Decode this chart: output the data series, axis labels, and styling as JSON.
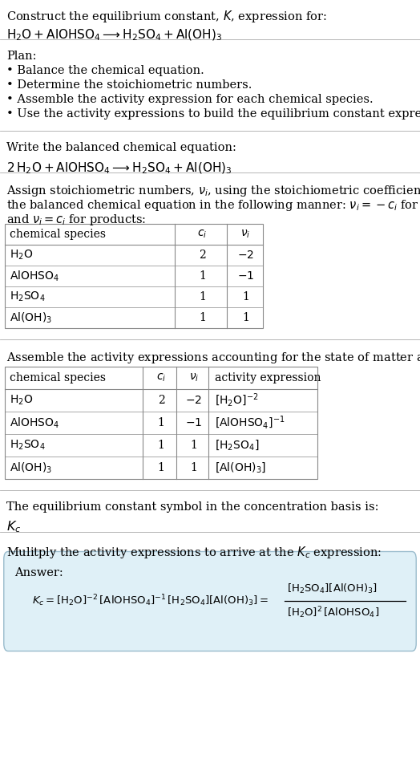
{
  "title_line1": "Construct the equilibrium constant, $K$, expression for:",
  "title_line2": "$\\mathrm{H_2O + AlOHSO_4 \\longrightarrow H_2SO_4 + Al(OH)_3}$",
  "plan_header": "Plan:",
  "plan_items": [
    "• Balance the chemical equation.",
    "• Determine the stoichiometric numbers.",
    "• Assemble the activity expression for each chemical species.",
    "• Use the activity expressions to build the equilibrium constant expression."
  ],
  "balanced_header": "Write the balanced chemical equation:",
  "balanced_eq": "$\\mathrm{2\\,H_2O + AlOHSO_4 \\longrightarrow H_2SO_4 + Al(OH)_3}$",
  "stoich_header1": "Assign stoichiometric numbers, $\\nu_i$, using the stoichiometric coefficients, $c_i$, from",
  "stoich_header2": "the balanced chemical equation in the following manner: $\\nu_i = -c_i$ for reactants",
  "stoich_header3": "and $\\nu_i = c_i$ for products:",
  "table1_cols": [
    "chemical species",
    "$c_i$",
    "$\\nu_i$"
  ],
  "table1_rows": [
    [
      "$\\mathrm{H_2O}$",
      "2",
      "$-2$"
    ],
    [
      "$\\mathrm{AlOHSO_4}$",
      "1",
      "$-1$"
    ],
    [
      "$\\mathrm{H_2SO_4}$",
      "1",
      "1"
    ],
    [
      "$\\mathrm{Al(OH)_3}$",
      "1",
      "1"
    ]
  ],
  "activity_header": "Assemble the activity expressions accounting for the state of matter and $\\nu_i$:",
  "table2_cols": [
    "chemical species",
    "$c_i$",
    "$\\nu_i$",
    "activity expression"
  ],
  "table2_rows": [
    [
      "$\\mathrm{H_2O}$",
      "2",
      "$-2$",
      "$[\\mathrm{H_2O}]^{-2}$"
    ],
    [
      "$\\mathrm{AlOHSO_4}$",
      "1",
      "$-1$",
      "$[\\mathrm{AlOHSO_4}]^{-1}$"
    ],
    [
      "$\\mathrm{H_2SO_4}$",
      "1",
      "1",
      "$[\\mathrm{H_2SO_4}]$"
    ],
    [
      "$\\mathrm{Al(OH)_3}$",
      "1",
      "1",
      "$[\\mathrm{Al(OH)_3}]$"
    ]
  ],
  "kc_header": "The equilibrium constant symbol in the concentration basis is:",
  "kc_symbol": "$K_c$",
  "multiply_header": "Mulitply the activity expressions to arrive at the $K_c$ expression:",
  "answer_label": "Answer:",
  "bg_color": "#ffffff",
  "answer_box_bg": "#dff0f7",
  "answer_box_border": "#99bbcc",
  "divider_color": "#aaaaaa",
  "text_color": "#000000",
  "fs": 10.5
}
